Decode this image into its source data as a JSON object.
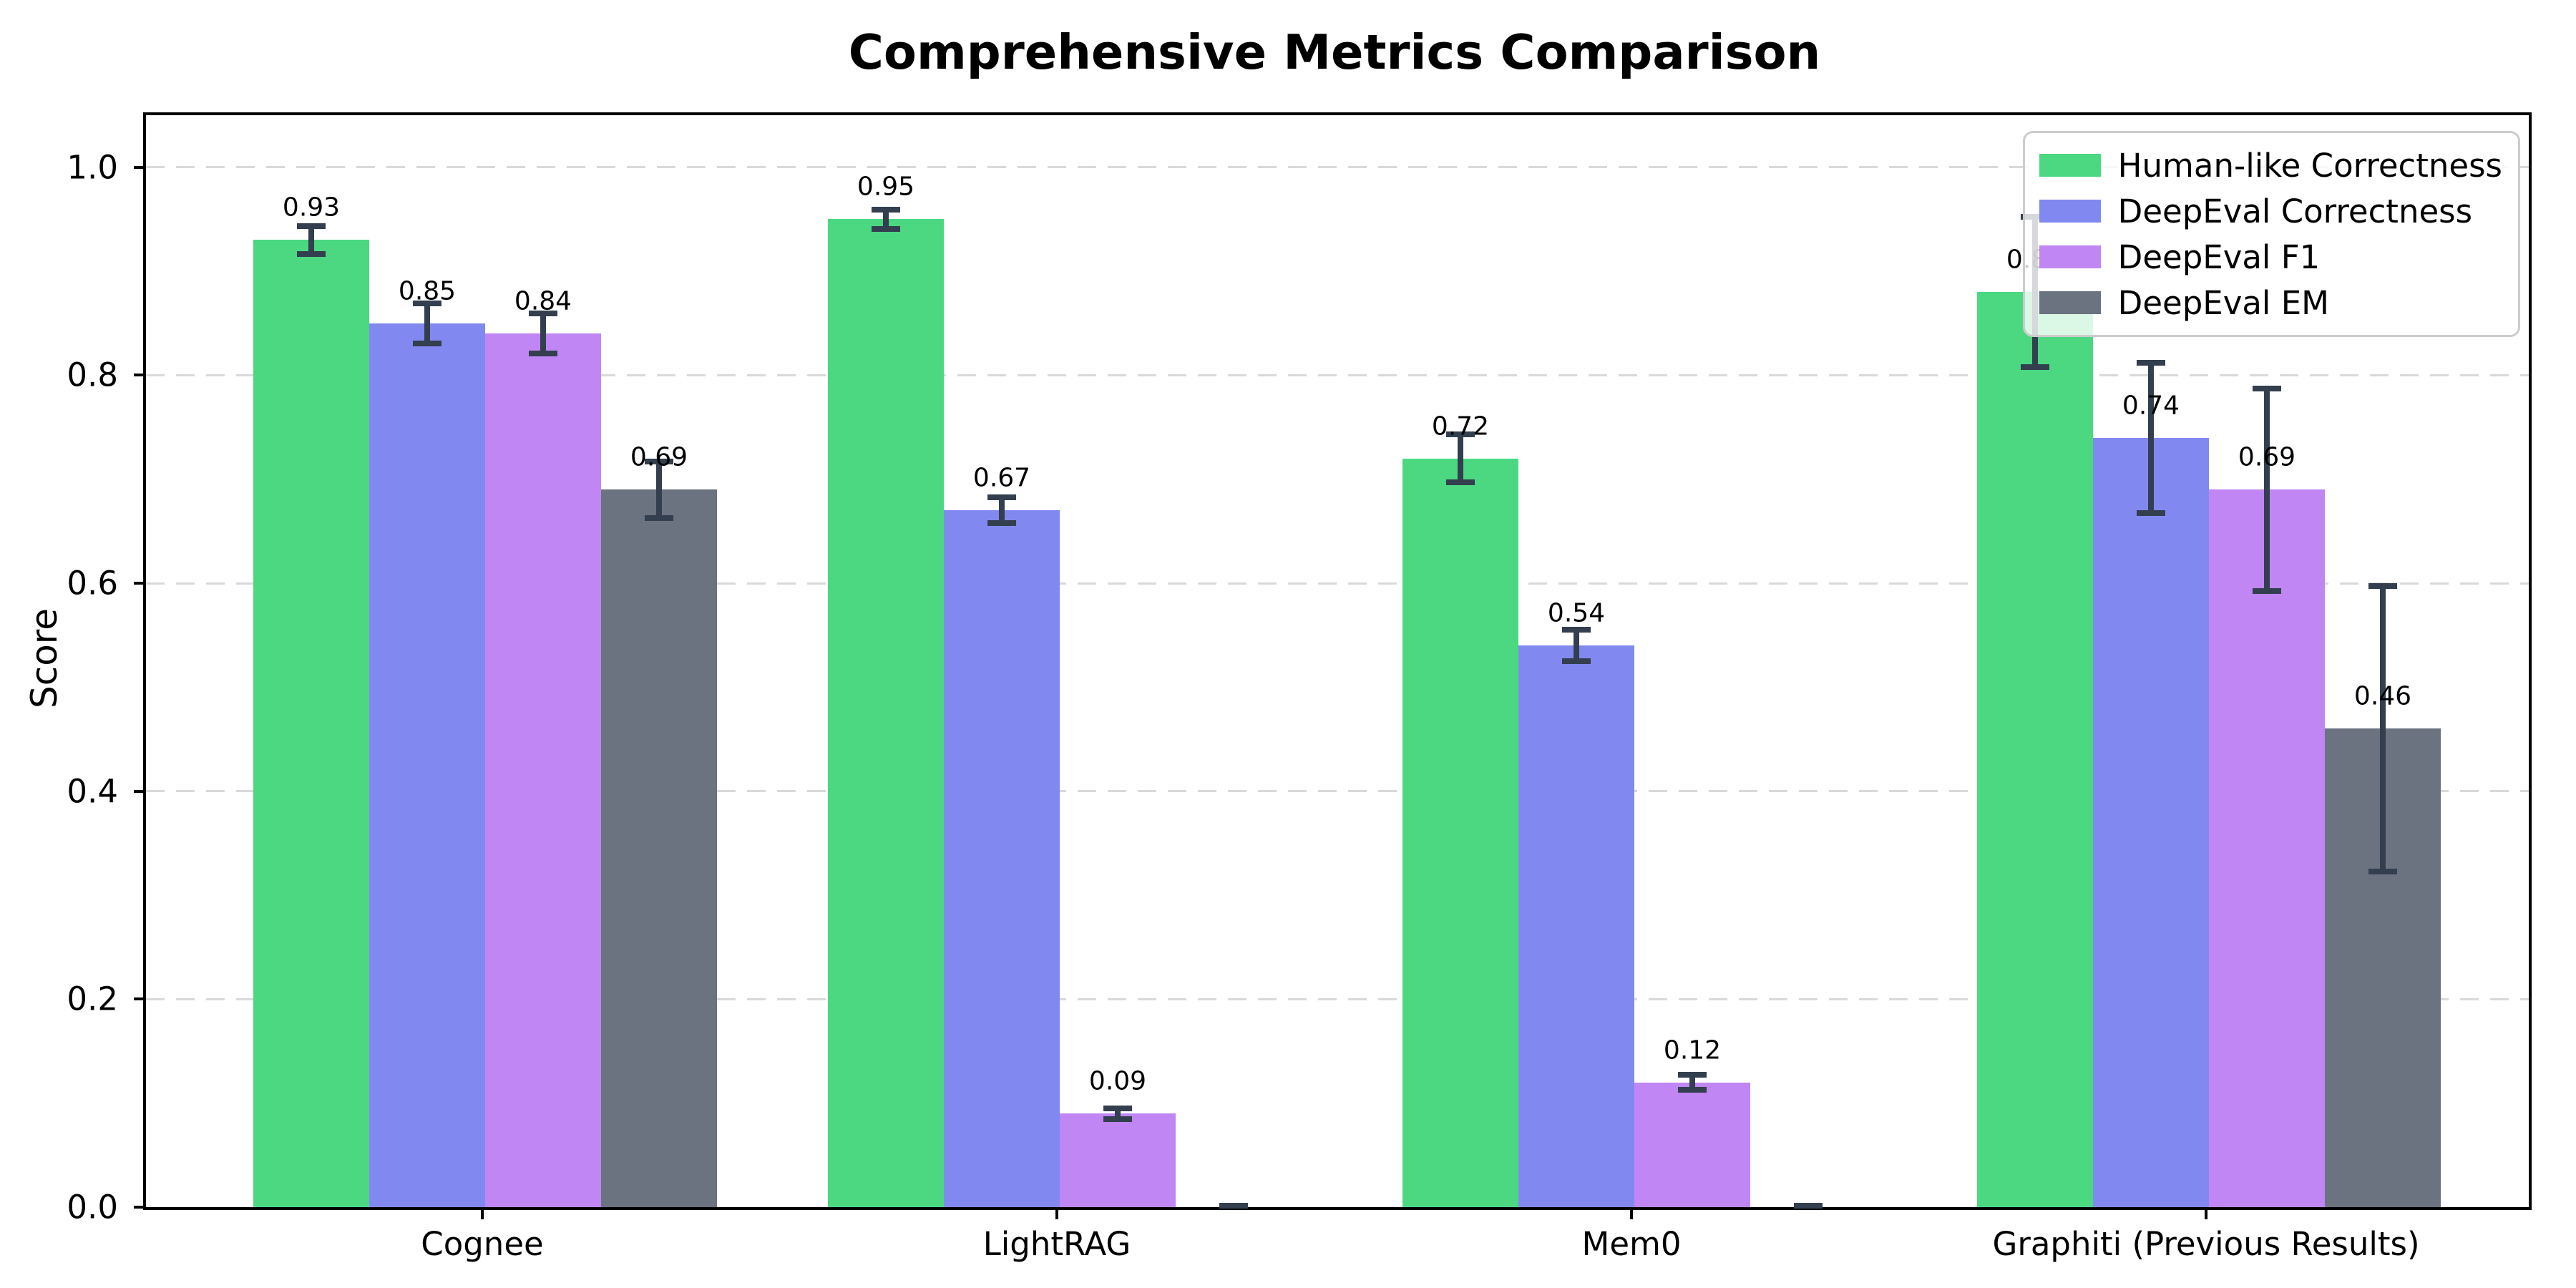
{
  "title": "Comprehensive Metrics Comparison",
  "chart_data": {
    "type": "bar",
    "title": "Comprehensive Metrics Comparison",
    "xlabel": "",
    "ylabel": "Score",
    "ylim": [
      0,
      1.05
    ],
    "yticks": [
      0.0,
      0.2,
      0.4,
      0.6,
      0.8,
      1.0
    ],
    "ytick_labels": [
      "0.0",
      "0.2",
      "0.4",
      "0.6",
      "0.8",
      "1.0"
    ],
    "grid": "horizontal dashed",
    "grid_color": "#d9d9d9",
    "legend_position": "upper-right",
    "background_color": "#ffffff",
    "error_bar_color": "#333f4e",
    "categories": [
      "Cognee",
      "LightRAG",
      "Mem0",
      "Graphiti (Previous Results)"
    ],
    "series": [
      {
        "name": "Human-like Correctness",
        "color": "#4bd881",
        "values": [
          0.93,
          0.95,
          0.72,
          0.88
        ],
        "errors": [
          0.016,
          0.012,
          0.026,
          0.075
        ],
        "labels": [
          "0.93",
          "0.95",
          "0.72",
          "0.88"
        ]
      },
      {
        "name": "DeepEval Correctness",
        "color": "#8189f1",
        "values": [
          0.85,
          0.67,
          0.54,
          0.74
        ],
        "errors": [
          0.022,
          0.015,
          0.018,
          0.075
        ],
        "labels": [
          "0.85",
          "0.67",
          "0.54",
          "0.74"
        ]
      },
      {
        "name": "DeepEval F1",
        "color": "#bf86f4",
        "values": [
          0.84,
          0.09,
          0.12,
          0.69
        ],
        "errors": [
          0.022,
          0.008,
          0.01,
          0.1
        ],
        "labels": [
          "0.84",
          "0.09",
          "0.12",
          "0.69"
        ]
      },
      {
        "name": "DeepEval EM",
        "color": "#6b7280",
        "values": [
          0.69,
          0.0,
          0.0,
          0.46
        ],
        "errors": [
          0.03,
          0.004,
          0.004,
          0.14
        ],
        "labels": [
          "0.69",
          "",
          "",
          "0.46"
        ]
      }
    ]
  }
}
